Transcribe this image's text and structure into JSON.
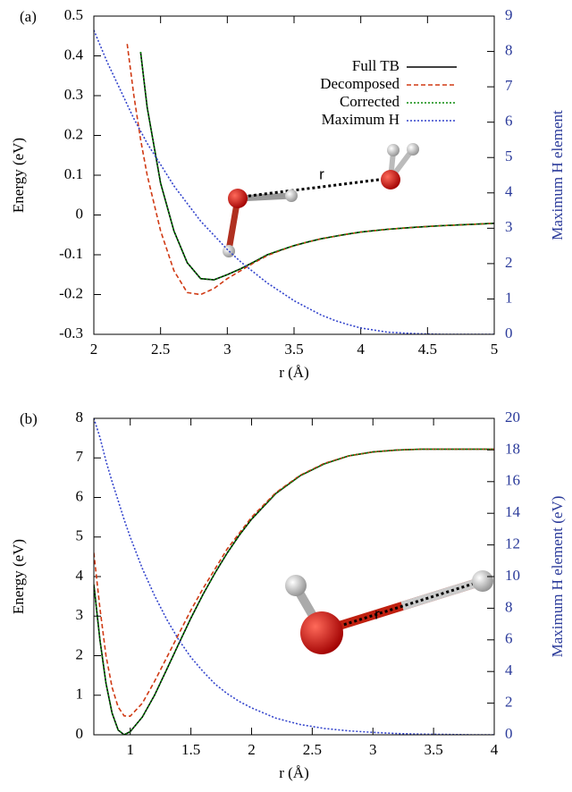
{
  "chart_data": [
    {
      "type": "line",
      "panel_label": "(a)",
      "x_label": "r (Å)",
      "y_label": "Energy (eV)",
      "y2_label": "Maximum H element",
      "y2_color": "#2a3a9a",
      "annotation": "r",
      "legend": "upper right",
      "xlim": [
        2,
        5
      ],
      "xticks": [
        2,
        2.5,
        3,
        3.5,
        4,
        4.5,
        5
      ],
      "ylim": [
        -0.3,
        0.5
      ],
      "yticks": [
        -0.3,
        -0.2,
        -0.1,
        0,
        0.1,
        0.2,
        0.3,
        0.4,
        0.5
      ],
      "y2lim": [
        0,
        9
      ],
      "y2ticks": [
        0,
        1,
        2,
        3,
        4,
        5,
        6,
        7,
        8,
        9
      ],
      "x": [
        2.0,
        2.1,
        2.2,
        2.25,
        2.3,
        2.35,
        2.4,
        2.5,
        2.6,
        2.7,
        2.8,
        2.9,
        3.0,
        3.1,
        3.2,
        3.3,
        3.4,
        3.5,
        3.6,
        3.7,
        3.8,
        3.9,
        4.0,
        4.2,
        4.4,
        4.6,
        4.8,
        5.0
      ],
      "series": [
        {
          "name": "Full TB",
          "color": "#000000",
          "dash": "solid",
          "values": [
            null,
            null,
            null,
            null,
            null,
            0.41,
            0.27,
            0.08,
            -0.04,
            -0.12,
            -0.16,
            -0.163,
            -0.15,
            -0.135,
            -0.118,
            -0.1,
            -0.088,
            -0.077,
            -0.068,
            -0.06,
            -0.054,
            -0.048,
            -0.043,
            -0.036,
            -0.031,
            -0.027,
            -0.024,
            -0.021
          ]
        },
        {
          "name": "Decomposed",
          "color": "#d03a14",
          "dash": "dashed",
          "values": [
            null,
            null,
            null,
            0.43,
            0.3,
            0.19,
            0.1,
            -0.04,
            -0.14,
            -0.195,
            -0.2,
            -0.185,
            -0.16,
            -0.14,
            -0.12,
            -0.102,
            -0.089,
            -0.077,
            -0.068,
            -0.06,
            -0.054,
            -0.048,
            -0.043,
            -0.036,
            -0.031,
            -0.027,
            -0.024,
            -0.021
          ]
        },
        {
          "name": "Corrected",
          "color": "#0a8a0a",
          "dash": "dotted",
          "values": [
            null,
            null,
            null,
            null,
            null,
            0.41,
            0.27,
            0.08,
            -0.04,
            -0.12,
            -0.16,
            -0.163,
            -0.15,
            -0.135,
            -0.118,
            -0.1,
            -0.088,
            -0.077,
            -0.068,
            -0.06,
            -0.054,
            -0.048,
            -0.043,
            -0.036,
            -0.031,
            -0.027,
            -0.024,
            -0.021
          ]
        },
        {
          "name": "Maximum H",
          "color": "#3344cc",
          "dash": "dotted",
          "axis": "y2",
          "values": [
            8.6,
            7.7,
            6.9,
            6.5,
            6.1,
            5.75,
            5.4,
            4.8,
            4.2,
            3.7,
            3.2,
            2.8,
            2.4,
            2.05,
            1.75,
            1.45,
            1.2,
            0.95,
            0.75,
            0.55,
            0.4,
            0.28,
            0.18,
            0.06,
            0.02,
            0,
            0,
            0
          ]
        }
      ]
    },
    {
      "type": "line",
      "panel_label": "(b)",
      "x_label": "r (Å)",
      "y_label": "Energy (eV)",
      "y2_label": "Maximum H element (eV)",
      "y2_color": "#2a3a9a",
      "annotation": "r",
      "xlim": [
        0.7,
        4
      ],
      "xticks": [
        1,
        1.5,
        2,
        2.5,
        3,
        3.5,
        4
      ],
      "ylim": [
        0,
        8
      ],
      "yticks": [
        0,
        1,
        2,
        3,
        4,
        5,
        6,
        7,
        8
      ],
      "y2lim": [
        0,
        20
      ],
      "y2ticks": [
        0,
        2,
        4,
        6,
        8,
        10,
        12,
        14,
        16,
        18,
        20
      ],
      "x": [
        0.7,
        0.75,
        0.8,
        0.85,
        0.9,
        0.95,
        1.0,
        1.1,
        1.2,
        1.3,
        1.4,
        1.5,
        1.6,
        1.7,
        1.8,
        1.9,
        2.0,
        2.2,
        2.4,
        2.6,
        2.8,
        3.0,
        3.2,
        3.4,
        3.6,
        3.8,
        4.0
      ],
      "series": [
        {
          "name": "Full TB",
          "color": "#000000",
          "dash": "solid",
          "values": [
            3.8,
            2.4,
            1.3,
            0.55,
            0.12,
            0.0,
            0.08,
            0.45,
            1.0,
            1.65,
            2.3,
            2.95,
            3.55,
            4.1,
            4.6,
            5.05,
            5.45,
            6.1,
            6.55,
            6.85,
            7.05,
            7.15,
            7.2,
            7.22,
            7.22,
            7.22,
            7.22
          ]
        },
        {
          "name": "Decomposed",
          "color": "#d03a14",
          "dash": "dashed",
          "values": [
            4.6,
            3.2,
            2.0,
            1.2,
            0.7,
            0.48,
            0.47,
            0.8,
            1.35,
            1.95,
            2.55,
            3.15,
            3.7,
            4.2,
            4.7,
            5.1,
            5.5,
            6.12,
            6.56,
            6.86,
            7.05,
            7.15,
            7.2,
            7.22,
            7.22,
            7.22,
            7.22
          ]
        },
        {
          "name": "Corrected",
          "color": "#0a8a0a",
          "dash": "dotted",
          "values": [
            3.8,
            2.4,
            1.3,
            0.55,
            0.12,
            0.0,
            0.08,
            0.45,
            1.0,
            1.65,
            2.3,
            2.95,
            3.55,
            4.1,
            4.6,
            5.05,
            5.45,
            6.1,
            6.55,
            6.85,
            7.05,
            7.15,
            7.2,
            7.22,
            7.22,
            7.22,
            7.22
          ]
        },
        {
          "name": "Maximum H",
          "color": "#3344cc",
          "dash": "dotted",
          "axis": "y2",
          "values": [
            20,
            18.8,
            17.3,
            16,
            14.8,
            13.6,
            12.5,
            10.5,
            8.8,
            7.3,
            6.0,
            4.9,
            4.0,
            3.2,
            2.6,
            2.1,
            1.7,
            1.05,
            0.65,
            0.4,
            0.25,
            0.15,
            0.08,
            0.04,
            0.02,
            0,
            0
          ]
        }
      ]
    }
  ]
}
